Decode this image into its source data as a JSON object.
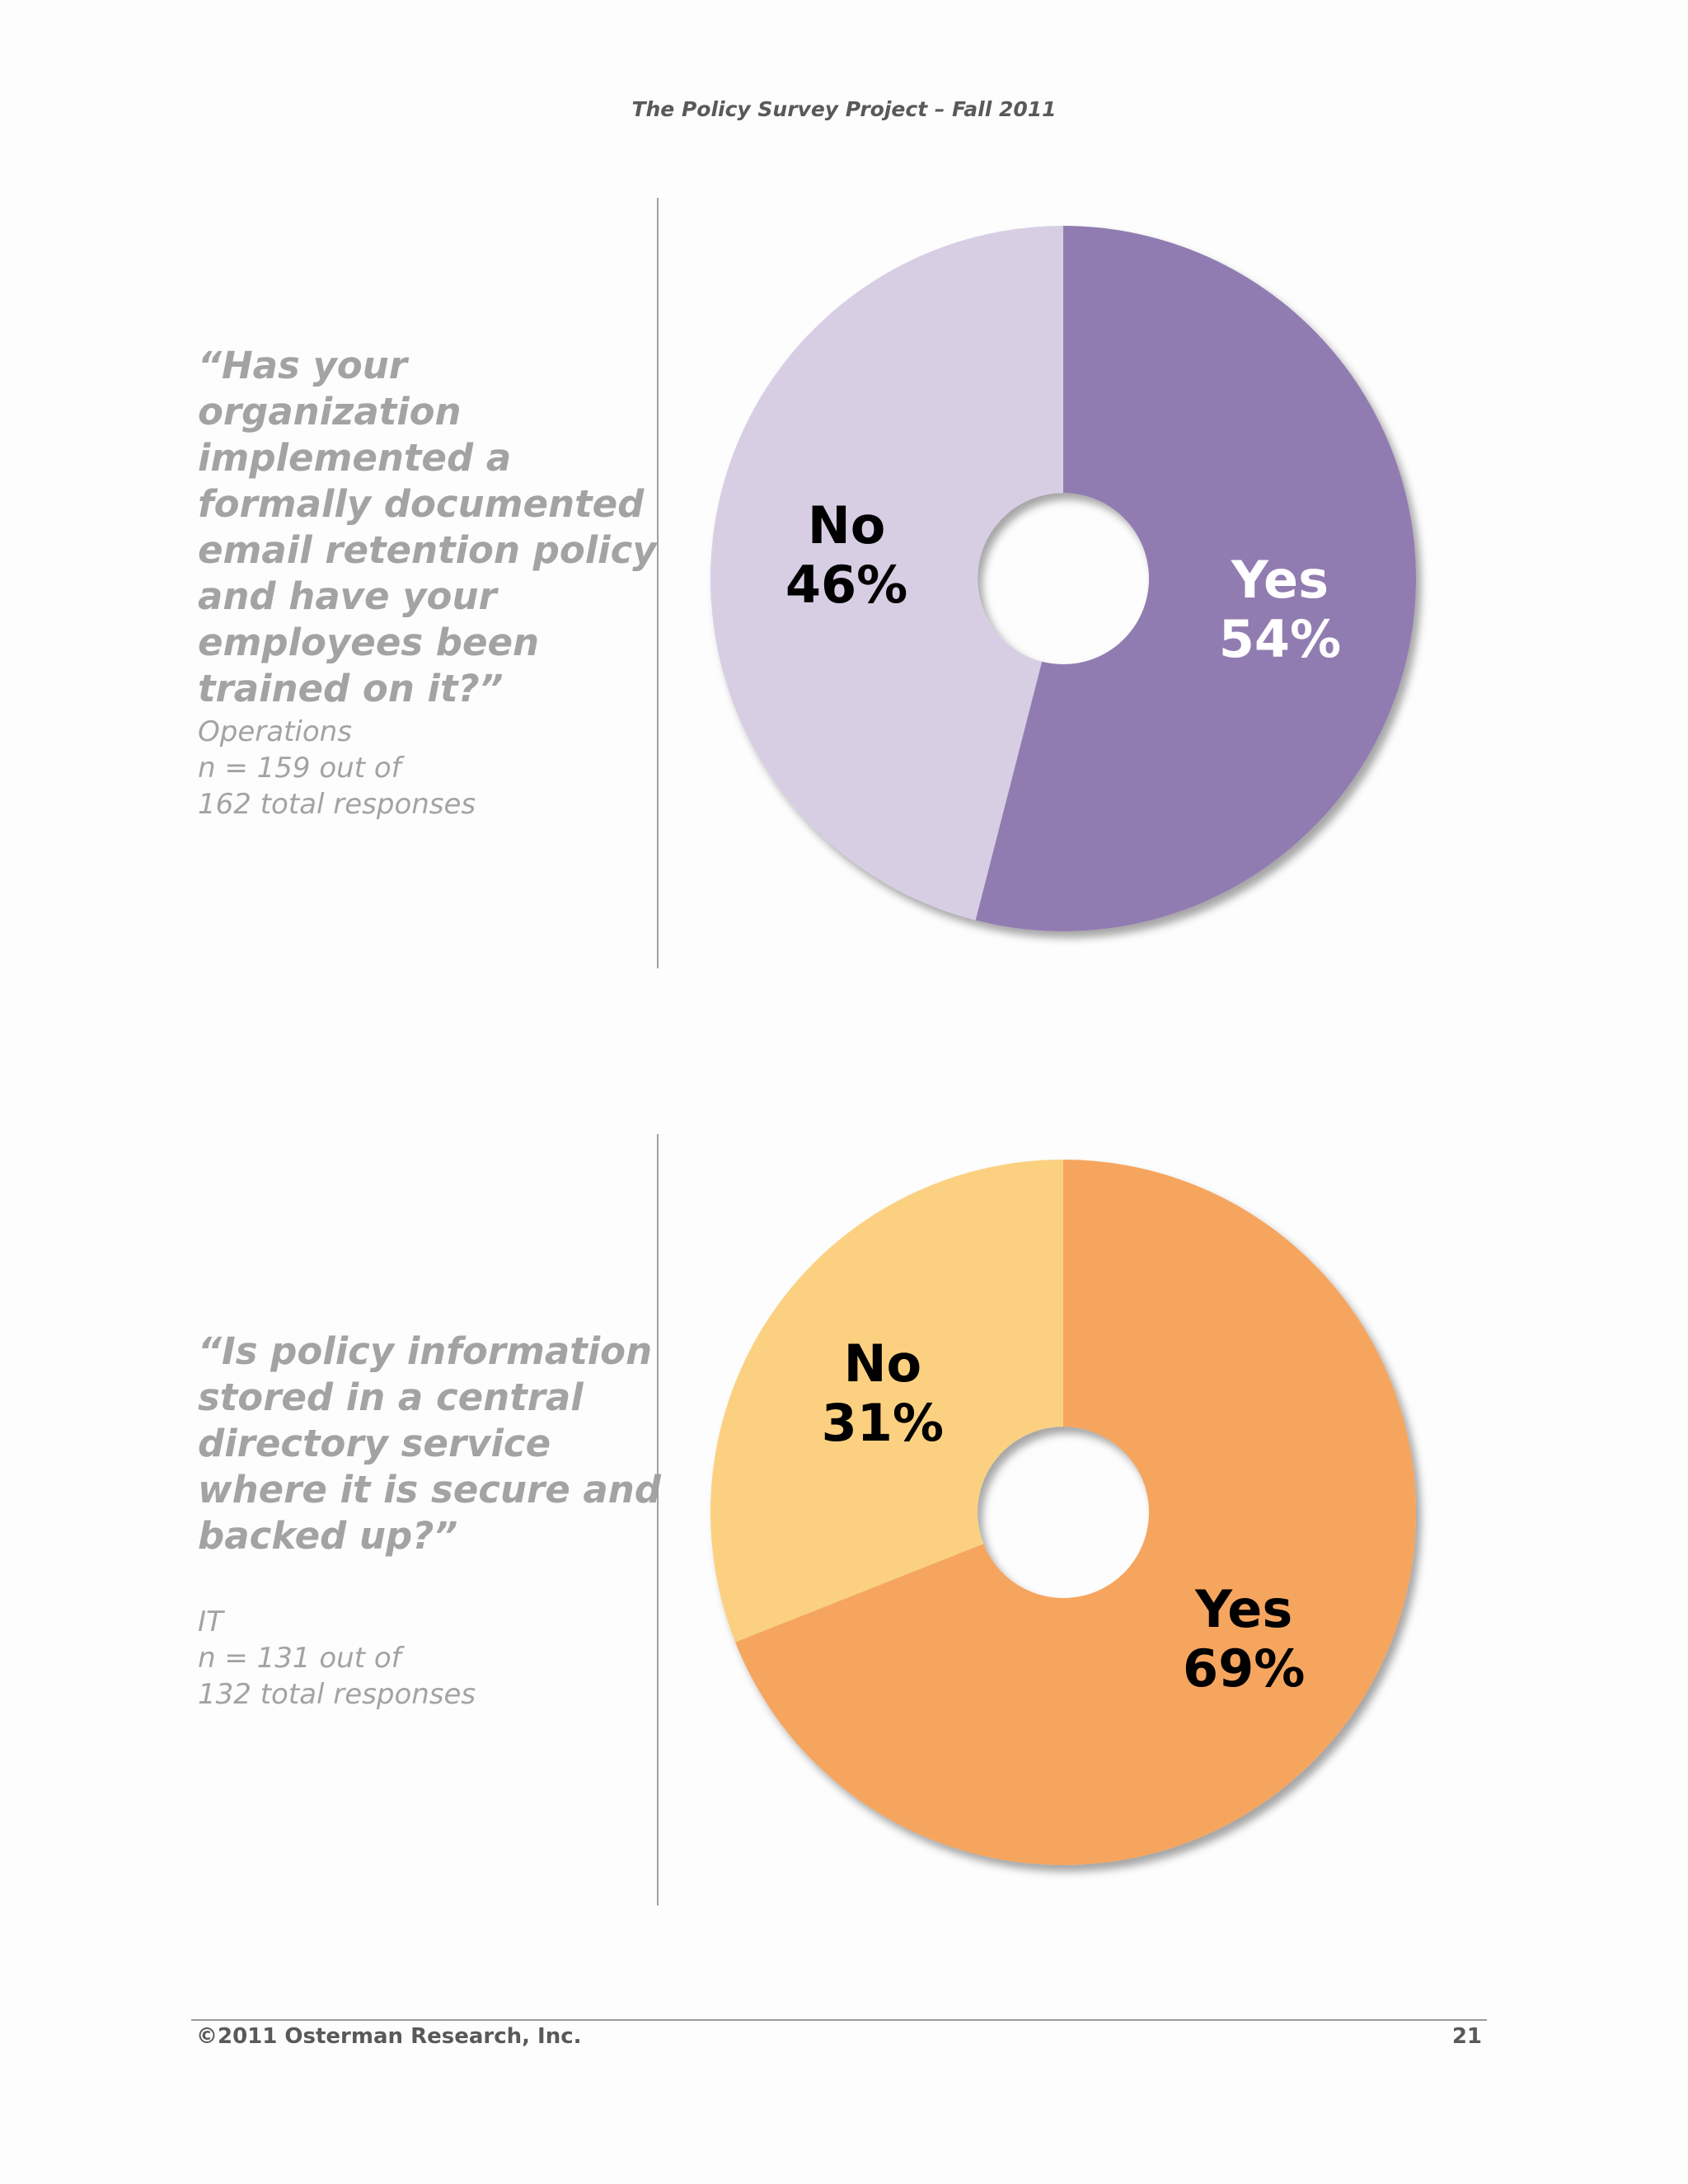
{
  "header": {
    "title": "The Policy Survey Project – Fall 2011"
  },
  "sections": [
    {
      "question": "“Has your organization implemented a formally documented email retention policy and have your employees been trained on it?”",
      "group": "Operations",
      "n_line1": "n = 159 out of",
      "n_line2": "162 total responses"
    },
    {
      "question": "“Is policy information stored in a central directory service where it is secure and backed up?”",
      "group": "IT",
      "n_line1": "n = 131 out of",
      "n_line2": "132 total responses"
    }
  ],
  "chart_data": [
    {
      "type": "pie",
      "donut": true,
      "slices": [
        {
          "label": "Yes",
          "value": 54,
          "value_label": "54%",
          "color": "#917cb1",
          "text_color": "#ffffff"
        },
        {
          "label": "No",
          "value": 46,
          "value_label": "46%",
          "color": "#d8cee4",
          "text_color": "#000000"
        }
      ]
    },
    {
      "type": "pie",
      "donut": true,
      "slices": [
        {
          "label": "Yes",
          "value": 69,
          "value_label": "69%",
          "color": "#f6a55e",
          "text_color": "#000000"
        },
        {
          "label": "No",
          "value": 31,
          "value_label": "31%",
          "color": "#fbd181",
          "text_color": "#000000"
        }
      ]
    }
  ],
  "footer": {
    "copyright": "©2011 Osterman Research, Inc.",
    "page_number": "21"
  }
}
